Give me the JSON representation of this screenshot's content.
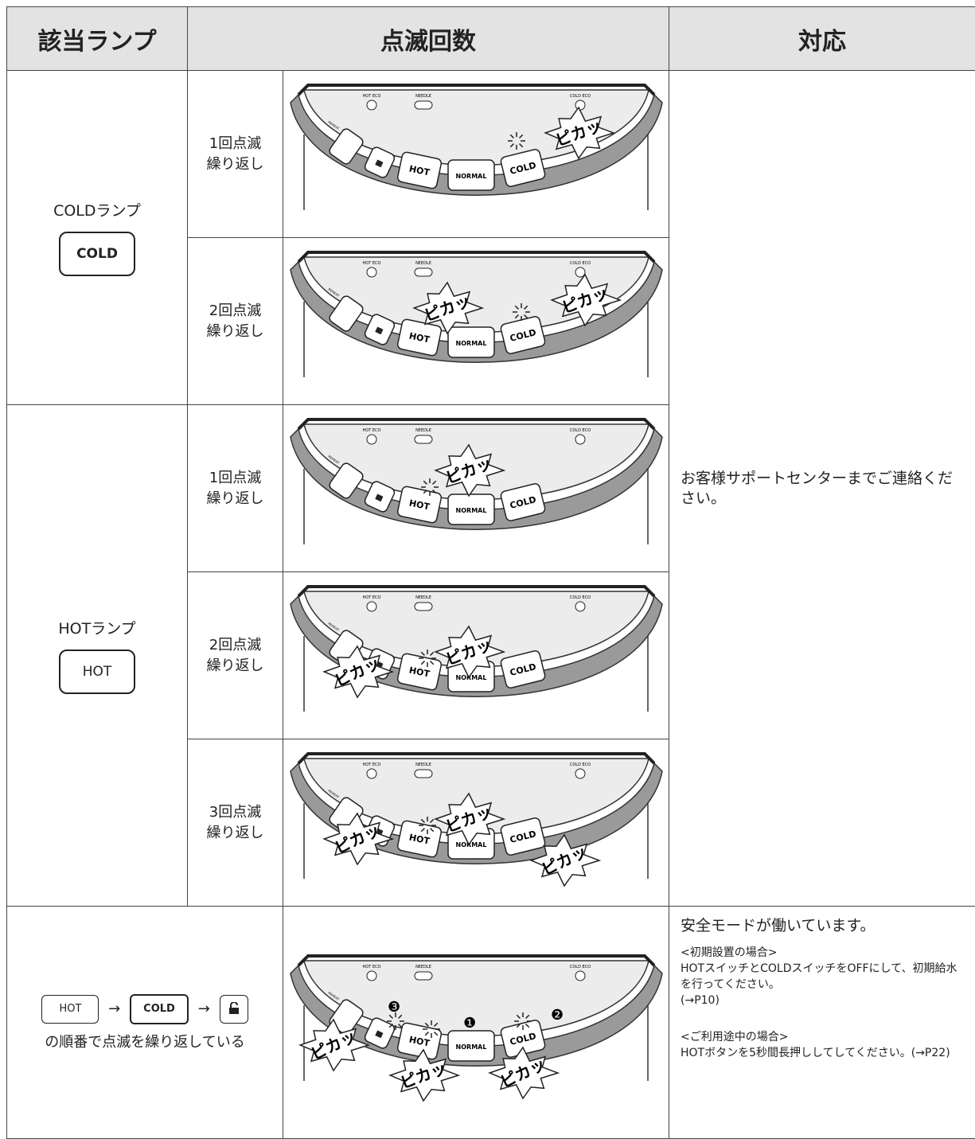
{
  "header": {
    "lamp": "該当ランプ",
    "blink": "点滅回数",
    "action": "対応"
  },
  "panel_labels": {
    "hot_eco": "HOT ECO",
    "needle": "NEEDLE",
    "cold_eco": "COLD ECO",
    "reheat": "REHEAT",
    "hot": "HOT",
    "normal": "NORMAL",
    "cold": "COLD",
    "flash": "ピカッ"
  },
  "groups": [
    {
      "lamp": "COLDランプ",
      "button": "COLD",
      "rows": [
        {
          "count": "1回点滅",
          "repeat": "繰り返し"
        },
        {
          "count": "2回点滅",
          "repeat": "繰り返し"
        }
      ]
    },
    {
      "lamp": "HOTランプ",
      "button": "HOT",
      "rows": [
        {
          "count": "1回点滅",
          "repeat": "繰り返し"
        },
        {
          "count": "2回点滅",
          "repeat": "繰り返し"
        },
        {
          "count": "3回点滅",
          "repeat": "繰り返し"
        }
      ]
    }
  ],
  "sequence": {
    "buttons": [
      "HOT",
      "COLD"
    ],
    "arrow": "→",
    "text": "の順番で点滅を繰り返している",
    "markers": [
      "❸",
      "❶",
      "❷"
    ]
  },
  "action": {
    "support": "お客様サポートセンターまでご連絡ください。",
    "safety": {
      "title": "安全モードが働いています。",
      "sections": [
        {
          "heading": "<初期設置の場合>",
          "text": "HOTスイッチとCOLDスイッチをOFFにして、初期給水を行ってください。",
          "ref": "(→P10)"
        },
        {
          "heading": "<ご利用途中の場合>",
          "text": "HOTボタンを5秒間長押ししてしてください。(→P22)"
        }
      ]
    }
  }
}
